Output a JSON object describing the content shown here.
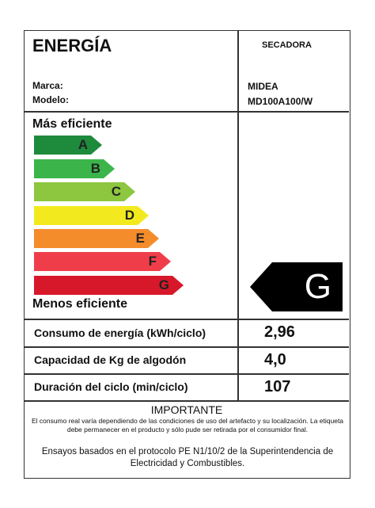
{
  "header": {
    "title": "ENERGÍA",
    "appliance": "SECADORA",
    "brand_label": "Marca:",
    "model_label": "Modelo:",
    "brand": "MIDEA",
    "model": "MD100A100/W"
  },
  "scale": {
    "most_efficient": "Más eficiente",
    "least_efficient": "Menos eficiente",
    "classes": [
      {
        "letter": "A",
        "color": "#1e8a3c"
      },
      {
        "letter": "B",
        "color": "#3bb54a"
      },
      {
        "letter": "C",
        "color": "#8dc63f"
      },
      {
        "letter": "D",
        "color": "#f2ea1f"
      },
      {
        "letter": "E",
        "color": "#f58c2b"
      },
      {
        "letter": "F",
        "color": "#ef3e4a"
      },
      {
        "letter": "G",
        "color": "#d7182a"
      }
    ],
    "rating": "G"
  },
  "specs": [
    {
      "label": "Consumo de energía (kWh/ciclo)",
      "value": "2,96"
    },
    {
      "label": "Capacidad de Kg de algodón",
      "value": "4,0"
    },
    {
      "label": "Duración del ciclo (min/ciclo)",
      "value": "107"
    }
  ],
  "important": {
    "title": "IMPORTANTE",
    "text": "El consumo real varía dependiendo de las condiciones de uso del artefacto y su localización. La etiqueta debe permanecer en el producto y sólo pude ser retirada por el consumidor final.",
    "footer": "Ensayos basados en el protocolo PE N1/10/2 de la Superintendencia de Electricidad y Combustibles."
  }
}
